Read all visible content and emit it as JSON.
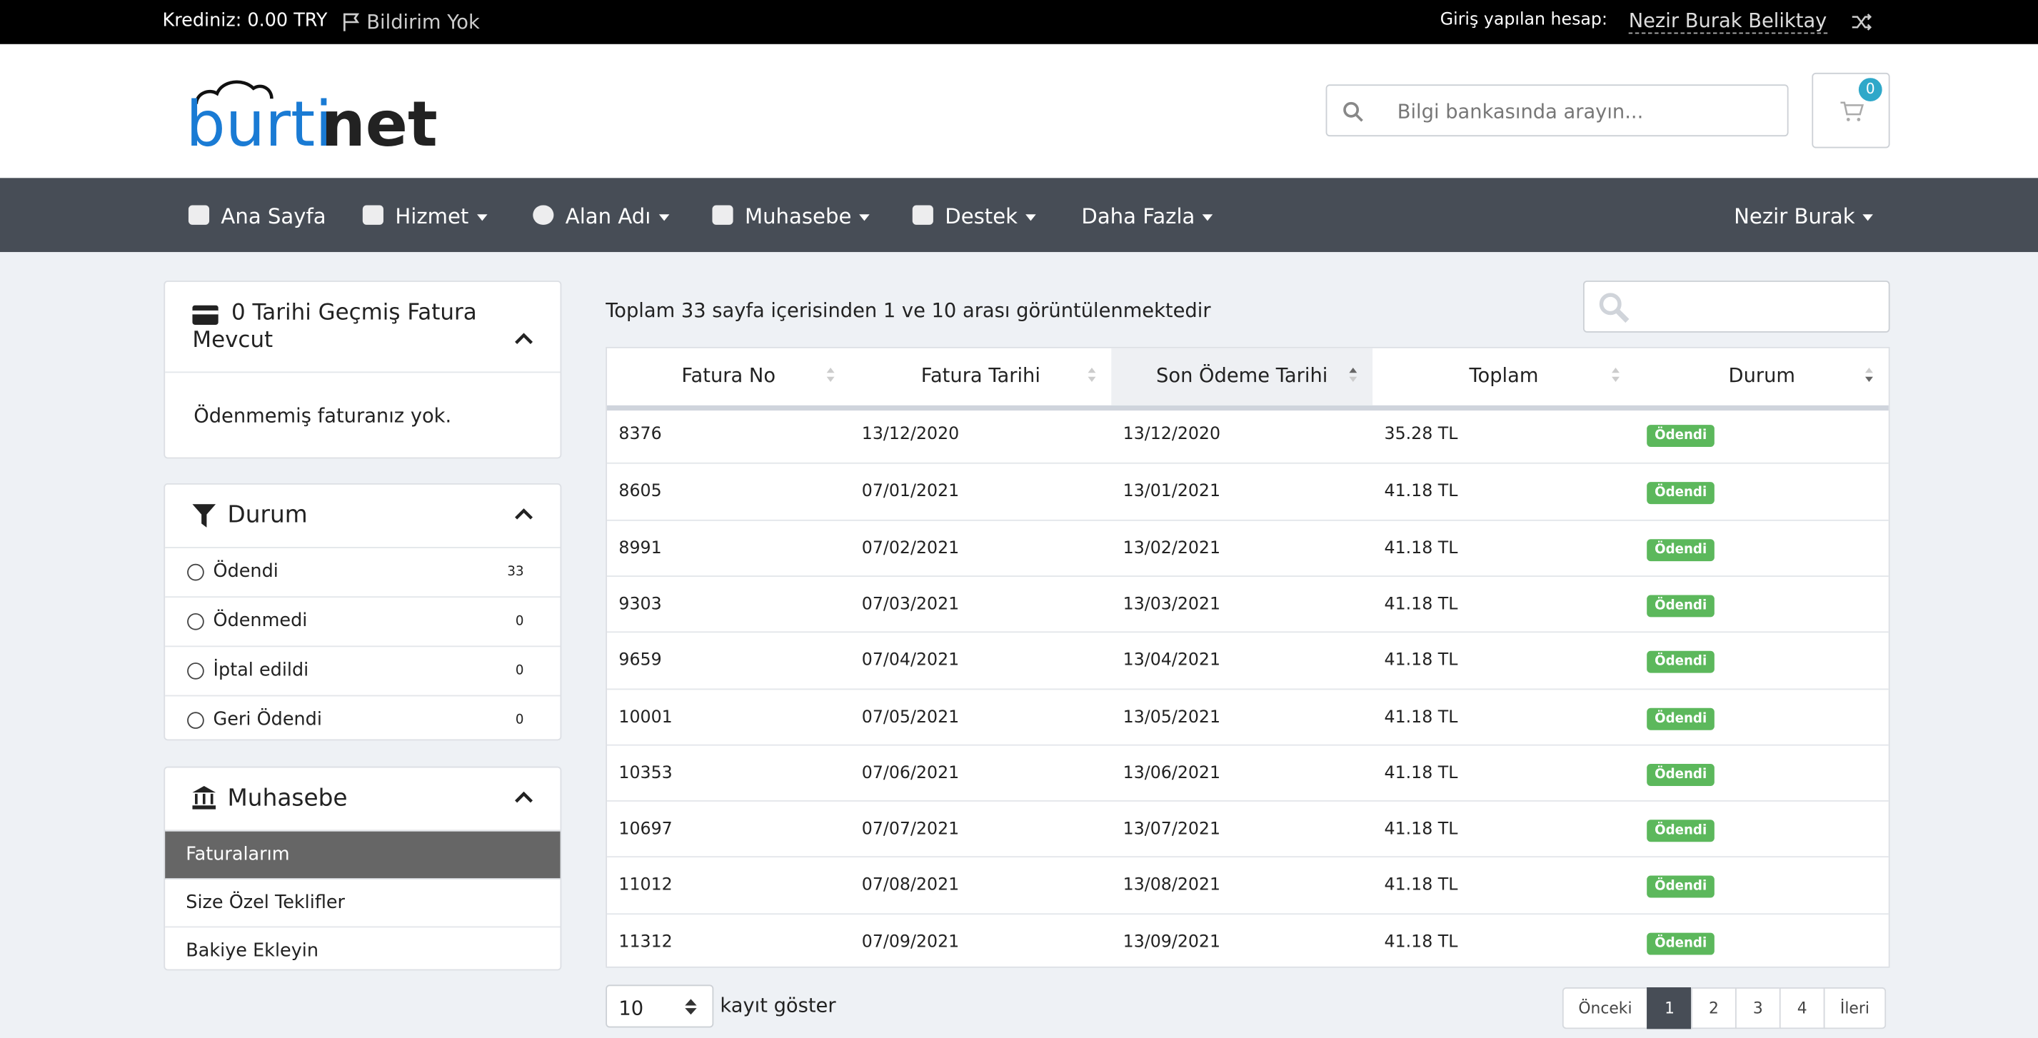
{
  "topbar": {
    "credit": "Krediniz: 0.00 TRY",
    "notifications": "Bildirim Yok",
    "login_label": "Giriş yapılan hesap:",
    "user": "Nezir Burak Beliktay"
  },
  "header": {
    "logo": {
      "light": "burti",
      "bold": "net"
    },
    "search_placeholder": "Bilgi bankasında arayın...",
    "cart_count": "0"
  },
  "nav": {
    "items": [
      "Ana Sayfa",
      "Hizmet",
      "Alan Adı",
      "Muhasebe",
      "Destek",
      "Daha Fazla"
    ],
    "user_menu": "Nezir Burak"
  },
  "sidebar": {
    "overdue": {
      "title": "0 Tarihi Geçmiş Fatura Mevcut",
      "body": "Ödenmemiş faturanız yok."
    },
    "status": {
      "title": "Durum",
      "items": [
        {
          "label": "Ödendi",
          "count": "33"
        },
        {
          "label": "Ödenmedi",
          "count": "0"
        },
        {
          "label": "İptal edildi",
          "count": "0"
        },
        {
          "label": "Geri Ödendi",
          "count": "0"
        }
      ]
    },
    "accounting": {
      "title": "Muhasebe",
      "items": [
        "Faturalarım",
        "Size Özel Teklifler",
        "Bakiye Ekleyin"
      ]
    }
  },
  "main": {
    "info": "Toplam 33 sayfa içerisinden 1 ve 10 arası görüntülenmektedir",
    "table": {
      "headers": [
        "Fatura No",
        "Fatura Tarihi",
        "Son Ödeme Tarihi",
        "Toplam",
        "Durum"
      ],
      "rows": [
        [
          "8376",
          "13/12/2020",
          "13/12/2020",
          "35.28 TL",
          "Ödendi"
        ],
        [
          "8605",
          "07/01/2021",
          "13/01/2021",
          "41.18 TL",
          "Ödendi"
        ],
        [
          "8991",
          "07/02/2021",
          "13/02/2021",
          "41.18 TL",
          "Ödendi"
        ],
        [
          "9303",
          "07/03/2021",
          "13/03/2021",
          "41.18 TL",
          "Ödendi"
        ],
        [
          "9659",
          "07/04/2021",
          "13/04/2021",
          "41.18 TL",
          "Ödendi"
        ],
        [
          "10001",
          "07/05/2021",
          "13/05/2021",
          "41.18 TL",
          "Ödendi"
        ],
        [
          "10353",
          "07/06/2021",
          "13/06/2021",
          "41.18 TL",
          "Ödendi"
        ],
        [
          "10697",
          "07/07/2021",
          "13/07/2021",
          "41.18 TL",
          "Ödendi"
        ],
        [
          "11012",
          "07/08/2021",
          "13/08/2021",
          "41.18 TL",
          "Ödendi"
        ],
        [
          "11312",
          "07/09/2021",
          "13/09/2021",
          "41.18 TL",
          "Ödendi"
        ]
      ]
    },
    "page_length": "10",
    "page_length_label": "kayıt göster",
    "pagination": [
      "Önceki",
      "1",
      "2",
      "3",
      "4",
      "İleri"
    ]
  }
}
